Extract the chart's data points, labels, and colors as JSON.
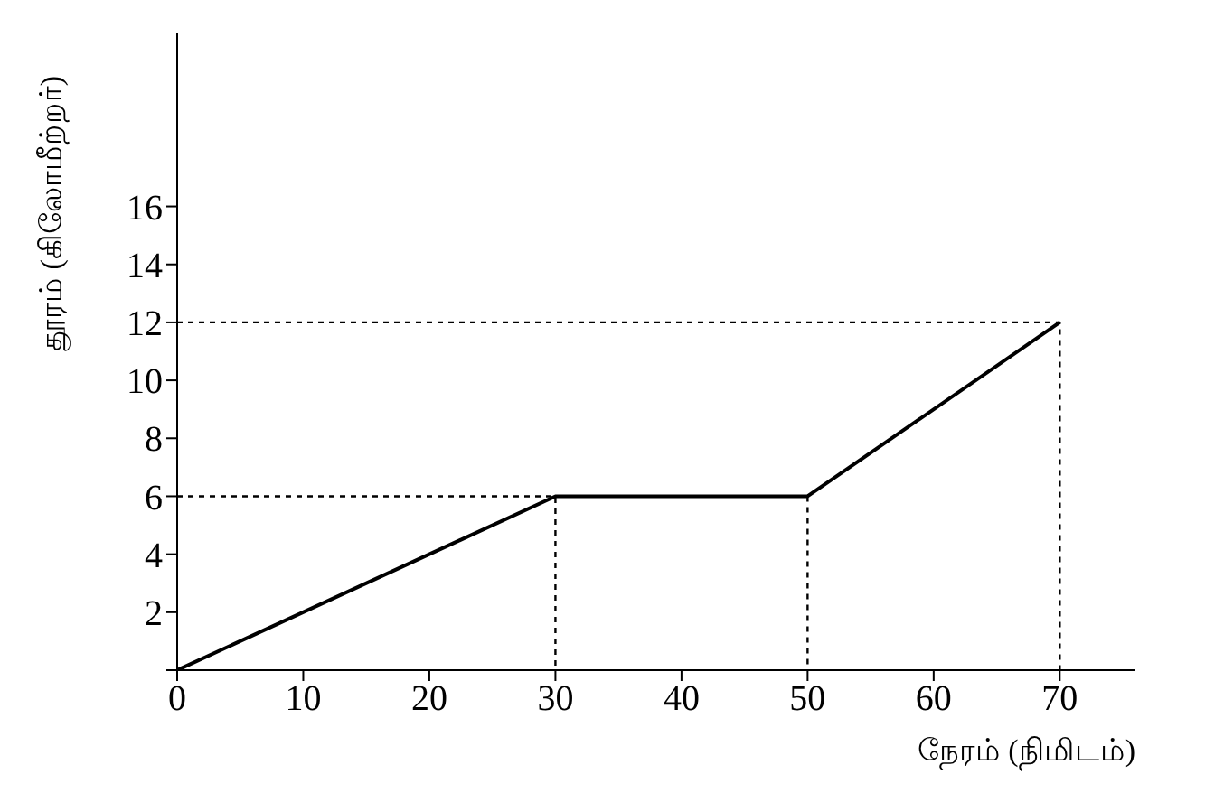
{
  "chart_data": {
    "type": "line",
    "xlabel": "நேரம் (நிமிடம்)",
    "ylabel": "தூரம் (கிலோமீற்றர்)",
    "xlim": [
      0,
      76
    ],
    "ylim": [
      0,
      22
    ],
    "xticks": [
      0,
      10,
      20,
      30,
      40,
      50,
      60,
      70
    ],
    "yticks": [
      {
        "value": 0,
        "label": null
      },
      2,
      4,
      6,
      8,
      10,
      12,
      14,
      16
    ],
    "grid": false,
    "marker": "none",
    "series": [
      {
        "color": "#000000",
        "x": [
          0,
          30,
          50,
          70
        ],
        "values": [
          0,
          6,
          6,
          12
        ],
        "line_style": "solid"
      },
      {
        "color": "#000000",
        "x": [
          0,
          30,
          30
        ],
        "values": [
          6,
          6,
          0
        ],
        "line_style": "dotted"
      },
      {
        "color": "#000000",
        "x": [
          50,
          50
        ],
        "values": [
          6,
          0
        ],
        "line_style": "dotted"
      },
      {
        "color": "#000000",
        "x": [
          0,
          70,
          70
        ],
        "values": [
          12,
          12,
          0
        ],
        "line_style": "dotted"
      }
    ]
  }
}
